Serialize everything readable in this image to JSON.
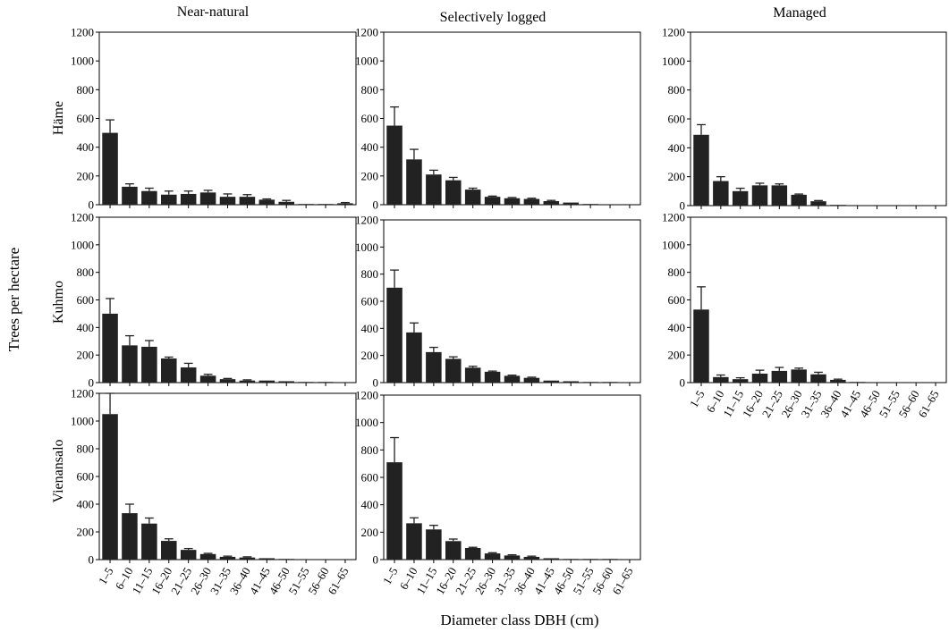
{
  "figure": {
    "ylabel": "Trees per hectare",
    "xlabel": "Diameter class DBH (cm)",
    "columns": [
      "Near-natural",
      "Selectively logged",
      "Managed"
    ],
    "rows": [
      "Häme",
      "Kuhmo",
      "Vienansalo"
    ],
    "bar_color": "#222222"
  },
  "chart_data": [
    {
      "type": "bar",
      "column": "Near-natural",
      "row": "Häme",
      "categories": [
        "1–5",
        "6–10",
        "11–15",
        "16–20",
        "21–25",
        "26–30",
        "31–35",
        "36–40",
        "41–45",
        "46–50",
        "51–55",
        "56–60",
        "61–65"
      ],
      "values": [
        500,
        125,
        95,
        70,
        75,
        85,
        55,
        55,
        35,
        20,
        5,
        5,
        10
      ],
      "errors": [
        90,
        20,
        20,
        25,
        20,
        15,
        20,
        15,
        5,
        10,
        0,
        0,
        5
      ],
      "ylim": [
        0,
        1200
      ],
      "yticks": [
        0,
        200,
        400,
        600,
        800,
        1000,
        1200
      ]
    },
    {
      "type": "bar",
      "column": "Selectively logged",
      "row": "Häme",
      "categories": [
        "1–5",
        "6–10",
        "11–15",
        "16–20",
        "21–25",
        "26–30",
        "31–35",
        "36–40",
        "41–45",
        "46–50",
        "51–55",
        "56–60",
        "61–65"
      ],
      "values": [
        550,
        315,
        210,
        170,
        105,
        55,
        45,
        40,
        25,
        15,
        5,
        0,
        0
      ],
      "errors": [
        130,
        70,
        30,
        20,
        10,
        5,
        5,
        5,
        5,
        0,
        0,
        0,
        0
      ],
      "ylim": [
        0,
        1200
      ],
      "yticks": [
        0,
        200,
        400,
        600,
        800,
        1000,
        1200
      ]
    },
    {
      "type": "bar",
      "column": "Managed",
      "row": "Häme",
      "categories": [
        "1–5",
        "6–10",
        "11–15",
        "16–20",
        "21–25",
        "26–30",
        "31–35",
        "36–40",
        "41–45",
        "46–50",
        "51–55",
        "56–60",
        "61–65"
      ],
      "values": [
        490,
        170,
        100,
        140,
        140,
        75,
        30,
        5,
        0,
        0,
        0,
        0,
        0
      ],
      "errors": [
        70,
        30,
        20,
        15,
        10,
        5,
        5,
        0,
        0,
        0,
        0,
        0,
        0
      ],
      "ylim": [
        0,
        1200
      ],
      "yticks": [
        0,
        200,
        400,
        600,
        800,
        1000,
        1200
      ]
    },
    {
      "type": "bar",
      "column": "Near-natural",
      "row": "Kuhmo",
      "categories": [
        "1–5",
        "6–10",
        "11–15",
        "16–20",
        "21–25",
        "26–30",
        "31–35",
        "36–40",
        "41–45",
        "46–50",
        "51–55",
        "56–60",
        "61–65"
      ],
      "values": [
        500,
        270,
        260,
        175,
        110,
        50,
        25,
        15,
        15,
        10,
        5,
        5,
        0
      ],
      "errors": [
        110,
        70,
        45,
        10,
        30,
        10,
        5,
        5,
        0,
        0,
        0,
        0,
        0
      ],
      "ylim": [
        0,
        1200
      ],
      "yticks": [
        0,
        200,
        400,
        600,
        800,
        1000,
        1200
      ]
    },
    {
      "type": "bar",
      "column": "Selectively logged",
      "row": "Kuhmo",
      "categories": [
        "1–5",
        "6–10",
        "11–15",
        "16–20",
        "21–25",
        "26–30",
        "31–35",
        "36–40",
        "41–45",
        "46–50",
        "51–55",
        "56–60",
        "61–65"
      ],
      "values": [
        700,
        370,
        225,
        175,
        110,
        80,
        50,
        35,
        15,
        10,
        5,
        5,
        0
      ],
      "errors": [
        130,
        70,
        35,
        15,
        10,
        5,
        5,
        5,
        0,
        0,
        0,
        0,
        0
      ],
      "ylim": [
        0,
        1200
      ],
      "yticks": [
        0,
        200,
        400,
        600,
        800,
        1000,
        1200
      ]
    },
    {
      "type": "bar",
      "column": "Managed",
      "row": "Kuhmo",
      "categories": [
        "1–5",
        "6–10",
        "11–15",
        "16–20",
        "21–25",
        "26–30",
        "31–35",
        "36–40",
        "41–45",
        "46–50",
        "51–55",
        "56–60",
        "61–65"
      ],
      "values": [
        530,
        40,
        25,
        65,
        85,
        95,
        60,
        20,
        5,
        0,
        0,
        0,
        0
      ],
      "errors": [
        165,
        15,
        10,
        25,
        25,
        10,
        15,
        5,
        0,
        0,
        0,
        0,
        0
      ],
      "ylim": [
        0,
        1200
      ],
      "yticks": [
        0,
        200,
        400,
        600,
        800,
        1000,
        1200
      ]
    },
    {
      "type": "bar",
      "column": "Near-natural",
      "row": "Vienansalo",
      "categories": [
        "1–5",
        "6–10",
        "11–15",
        "16–20",
        "21–25",
        "26–30",
        "31–35",
        "36–40",
        "41–45",
        "46–50",
        "51–55",
        "56–60",
        "61–65"
      ],
      "values": [
        1050,
        335,
        260,
        135,
        70,
        40,
        20,
        15,
        10,
        5,
        0,
        0,
        0
      ],
      "errors": [
        170,
        65,
        40,
        15,
        10,
        5,
        5,
        5,
        0,
        0,
        0,
        0,
        0
      ],
      "ylim": [
        0,
        1200
      ],
      "yticks": [
        0,
        200,
        400,
        600,
        800,
        1000,
        1200
      ]
    },
    {
      "type": "bar",
      "column": "Selectively logged",
      "row": "Vienansalo",
      "categories": [
        "1–5",
        "6–10",
        "11–15",
        "16–20",
        "21–25",
        "26–30",
        "31–35",
        "36–40",
        "41–45",
        "46–50",
        "51–55",
        "56–60",
        "61–65"
      ],
      "values": [
        710,
        265,
        220,
        135,
        85,
        45,
        30,
        20,
        10,
        5,
        5,
        5,
        0
      ],
      "errors": [
        180,
        40,
        30,
        15,
        5,
        5,
        5,
        5,
        0,
        0,
        0,
        0,
        0
      ],
      "ylim": [
        0,
        1200
      ],
      "yticks": [
        0,
        200,
        400,
        600,
        800,
        1000,
        1200
      ]
    }
  ]
}
